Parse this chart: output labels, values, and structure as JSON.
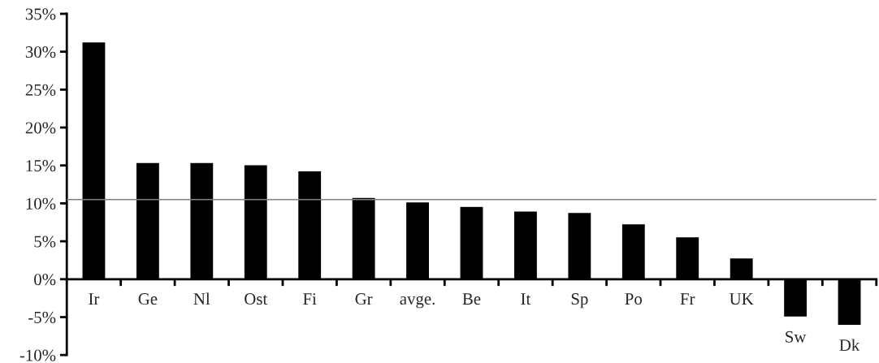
{
  "chart_data": {
    "type": "bar",
    "categories": [
      "Ir",
      "Ge",
      "Nl",
      "Ost",
      "Fi",
      "Gr",
      "avge.",
      "Be",
      "It",
      "Sp",
      "Po",
      "Fr",
      "UK",
      "Sw",
      "Dk"
    ],
    "values": [
      31.3,
      15.4,
      15.4,
      15.1,
      14.3,
      10.8,
      10.2,
      9.6,
      9.0,
      8.8,
      7.3,
      5.6,
      2.8,
      -5.0,
      -6.1
    ],
    "color": "#000000",
    "ylim": [
      -10,
      35
    ],
    "yticks": [
      {
        "value": -10,
        "label": "-10%"
      },
      {
        "value": -5,
        "label": "-5%"
      },
      {
        "value": 0,
        "label": "0%"
      },
      {
        "value": 5,
        "label": "5%"
      },
      {
        "value": 10,
        "label": "10%"
      },
      {
        "value": 15,
        "label": "15%"
      },
      {
        "value": 20,
        "label": "20%"
      },
      {
        "value": 25,
        "label": "25%"
      },
      {
        "value": 30,
        "label": "30%"
      },
      {
        "value": 35,
        "label": "35%"
      }
    ],
    "ref_lines": [
      {
        "axis": "y",
        "value": 10.5,
        "color": "#808080"
      }
    ],
    "grid": false
  }
}
